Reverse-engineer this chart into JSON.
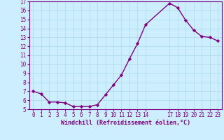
{
  "x": [
    0,
    1,
    2,
    3,
    4,
    5,
    6,
    7,
    8,
    9,
    10,
    11,
    12,
    13,
    14,
    17,
    18,
    19,
    20,
    21,
    22,
    23
  ],
  "y": [
    7.0,
    6.7,
    5.8,
    5.8,
    5.7,
    5.3,
    5.3,
    5.3,
    5.5,
    6.6,
    7.7,
    8.8,
    10.6,
    12.3,
    14.4,
    16.8,
    16.3,
    14.9,
    13.8,
    13.1,
    13.0,
    12.6
  ],
  "line_color": "#800080",
  "marker": "D",
  "marker_size": 2.2,
  "background_color": "#cceeff",
  "grid_color": "#aaddee",
  "xlabel": "Windchill (Refroidissement éolien,°C)",
  "xlabel_color": "#800080",
  "tick_color": "#800080",
  "ylim": [
    5,
    17
  ],
  "yticks": [
    5,
    6,
    7,
    8,
    9,
    10,
    11,
    12,
    13,
    14,
    15,
    16,
    17
  ],
  "xticks": [
    0,
    1,
    2,
    3,
    4,
    5,
    6,
    7,
    8,
    9,
    10,
    11,
    12,
    13,
    14,
    17,
    18,
    19,
    20,
    21,
    22,
    23
  ],
  "line_width": 1.0,
  "tick_fontsize": 5.5,
  "xlabel_fontsize": 6.0
}
